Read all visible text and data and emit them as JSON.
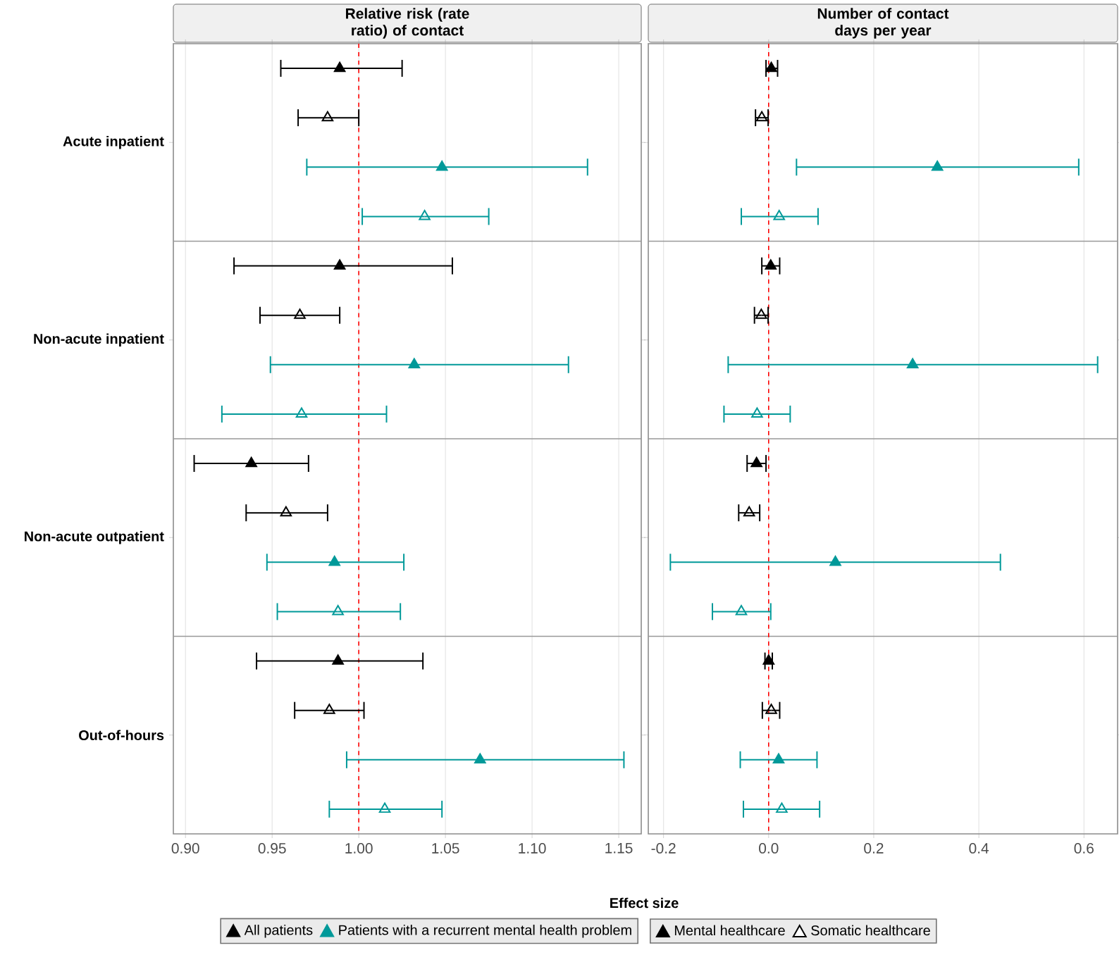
{
  "chart_data": [
    {
      "type": "scatter",
      "orientation": "horizontal",
      "title": "Relative risk (rate ratio) of contact",
      "xlabel": "Effect size",
      "categories": [
        "Acute inpatient",
        "Non-acute inpatient",
        "Non-acute outpatient",
        "Out-of-hours"
      ],
      "series": [
        {
          "color": "#000000",
          "marker": "triangle",
          "values": [
            0.989,
            0.989,
            0.938,
            0.988
          ],
          "errors": [
            [
              0.955,
              1.025
            ],
            [
              0.928,
              1.054
            ],
            [
              0.905,
              0.971
            ],
            [
              0.941,
              1.037
            ]
          ]
        },
        {
          "color": "#000000",
          "marker": "triangle open",
          "values": [
            0.982,
            0.966,
            0.958,
            0.983
          ],
          "errors": [
            [
              0.965,
              1.0
            ],
            [
              0.943,
              0.989
            ],
            [
              0.935,
              0.982
            ],
            [
              0.963,
              1.003
            ]
          ]
        },
        {
          "color": "#009999",
          "marker": "triangle",
          "values": [
            1.048,
            1.032,
            0.986,
            1.07
          ],
          "errors": [
            [
              0.97,
              1.132
            ],
            [
              0.949,
              1.121
            ],
            [
              0.947,
              1.026
            ],
            [
              0.993,
              1.153
            ]
          ]
        },
        {
          "color": "#009999",
          "marker": "triangle open",
          "values": [
            1.038,
            0.967,
            0.988,
            1.015
          ],
          "errors": [
            [
              1.002,
              1.075
            ],
            [
              0.921,
              1.016
            ],
            [
              0.953,
              1.024
            ],
            [
              0.983,
              1.048
            ]
          ]
        }
      ],
      "xlim": [
        0.893,
        1.163
      ],
      "xticks": [
        {
          "value": 0.9,
          "label": "0.90"
        },
        0.95,
        {
          "value": 1.0,
          "label": "1.00"
        },
        1.05,
        {
          "value": 1.1,
          "label": "1.10"
        },
        1.15
      ],
      "ref_lines": [
        {
          "axis": "x",
          "value": 1,
          "color": "#ff0000",
          "line_style": "dashed"
        }
      ],
      "grid": "x",
      "annotations": [
        "All patients",
        "Patients with a recurrent mental health problem",
        "Mental healthcare",
        "Somatic healthcare"
      ]
    },
    {
      "type": "scatter",
      "orientation": "horizontal",
      "title": "Number of contact days per year",
      "categories": [
        null,
        null,
        null,
        null
      ],
      "series": [
        {
          "color": "#000000",
          "marker": "triangle",
          "values": [
            0.005,
            0.004,
            -0.023,
            0.0
          ],
          "errors": [
            [
              -0.005,
              0.017
            ],
            [
              -0.013,
              0.021
            ],
            [
              -0.041,
              -0.005
            ],
            [
              -0.007,
              0.007
            ]
          ]
        },
        {
          "color": "#000000",
          "marker": "triangle open",
          "values": [
            -0.013,
            -0.014,
            -0.037,
            0.005
          ],
          "errors": [
            [
              -0.025,
              -0.001
            ],
            [
              -0.027,
              -0.001
            ],
            [
              -0.057,
              -0.017
            ],
            [
              -0.012,
              0.021
            ]
          ]
        },
        {
          "color": "#009999",
          "marker": "triangle",
          "values": [
            0.321,
            0.274,
            0.127,
            0.019
          ],
          "errors": [
            [
              0.053,
              0.59
            ],
            [
              -0.077,
              0.626
            ],
            [
              -0.187,
              0.441
            ],
            [
              -0.054,
              0.092
            ]
          ]
        },
        {
          "color": "#009999",
          "marker": "triangle open",
          "values": [
            0.02,
            -0.022,
            -0.052,
            0.025
          ],
          "errors": [
            [
              -0.052,
              0.094
            ],
            [
              -0.085,
              0.041
            ],
            [
              -0.107,
              0.004
            ],
            [
              -0.048,
              0.097
            ]
          ]
        }
      ],
      "xlim": [
        -0.229,
        0.664
      ],
      "xticks": [
        -0.2,
        {
          "value": 0,
          "label": "0.0"
        },
        0.2,
        0.4,
        0.6
      ],
      "ref_lines": [
        {
          "axis": "x",
          "value": 0,
          "color": "#ff0000",
          "line_style": "dashed"
        }
      ],
      "grid": "x",
      "tick_labels": "x"
    }
  ]
}
